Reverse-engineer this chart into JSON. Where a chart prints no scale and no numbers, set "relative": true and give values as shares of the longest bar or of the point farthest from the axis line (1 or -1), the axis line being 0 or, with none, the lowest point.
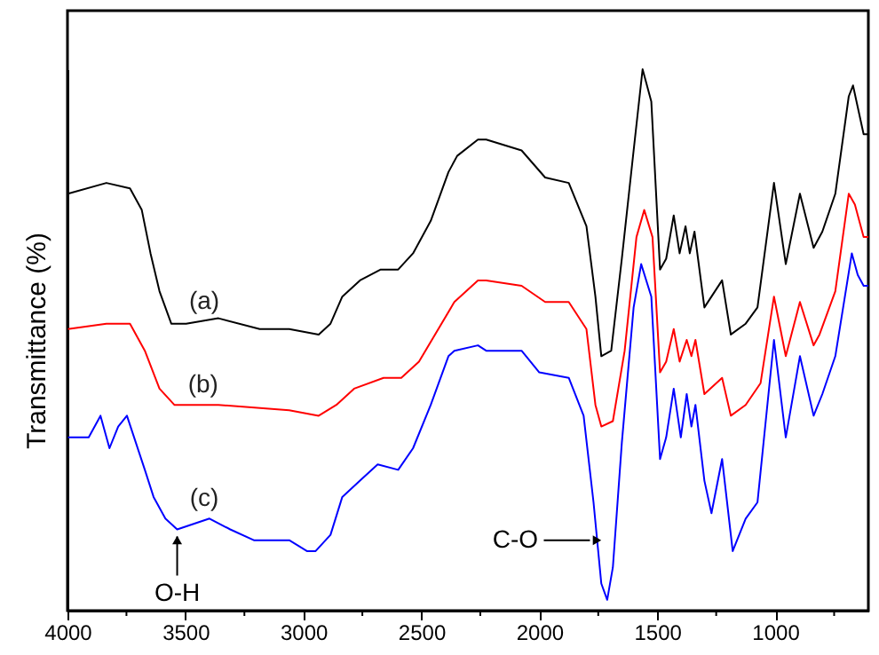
{
  "chart_data": {
    "type": "line",
    "relative": true,
    "ylabel": "Transmittance (%)",
    "xlim": [
      4000,
      605
    ],
    "xticks": [
      4000,
      {
        "value": 3750,
        "label": null
      },
      3500,
      {
        "value": 3250,
        "label": null
      },
      3000,
      {
        "value": 2750,
        "label": null
      },
      2500,
      {
        "value": 2250,
        "label": null
      },
      2000,
      {
        "value": 1750,
        "label": null
      },
      1500,
      {
        "value": 1250,
        "label": null
      },
      1000,
      {
        "value": 750,
        "label": null
      }
    ],
    "grid": false,
    "line_style": "solid",
    "marker": "none",
    "series": [
      {
        "color": "#000000",
        "x": [
          3998,
          3835,
          3735,
          3685,
          3648,
          3610,
          3560,
          3497,
          3360,
          3185,
          3060,
          2935,
          2885,
          2835,
          2760,
          2672,
          2598,
          2535,
          2460,
          2385,
          2348,
          2260,
          2225,
          2075,
          1975,
          1875,
          1800,
          1762,
          1737,
          1695,
          1650,
          1600,
          1562,
          1525,
          1488,
          1462,
          1430,
          1405,
          1380,
          1362,
          1342,
          1300,
          1225,
          1188,
          1125,
          1075,
          1005,
          955,
          895,
          837,
          800,
          745,
          688,
          670,
          625,
          605
        ],
        "values": [
          0.77,
          0.79,
          0.78,
          0.74,
          0.66,
          0.59,
          0.53,
          0.53,
          0.54,
          0.52,
          0.52,
          0.51,
          0.53,
          0.58,
          0.61,
          0.63,
          0.63,
          0.66,
          0.72,
          0.81,
          0.84,
          0.87,
          0.87,
          0.85,
          0.8,
          0.79,
          0.71,
          0.58,
          0.47,
          0.48,
          0.65,
          0.85,
          1.0,
          0.94,
          0.63,
          0.65,
          0.73,
          0.66,
          0.71,
          0.66,
          0.7,
          0.56,
          0.61,
          0.51,
          0.53,
          0.56,
          0.79,
          0.64,
          0.77,
          0.67,
          0.7,
          0.77,
          0.95,
          0.97,
          0.88,
          0.88
        ]
      },
      {
        "color": "#ff0000",
        "x": [
          3998,
          3835,
          3735,
          3672,
          3610,
          3547,
          3360,
          3060,
          2935,
          2860,
          2785,
          2660,
          2585,
          2510,
          2360,
          2260,
          2225,
          2075,
          1975,
          1875,
          1800,
          1762,
          1737,
          1688,
          1638,
          1588,
          1555,
          1520,
          1488,
          1462,
          1430,
          1405,
          1375,
          1355,
          1338,
          1300,
          1225,
          1188,
          1125,
          1062,
          1005,
          955,
          895,
          837,
          812,
          745,
          688,
          662,
          625,
          605
        ],
        "values": [
          0.52,
          0.53,
          0.53,
          0.48,
          0.41,
          0.38,
          0.38,
          0.37,
          0.36,
          0.38,
          0.41,
          0.43,
          0.43,
          0.46,
          0.57,
          0.61,
          0.61,
          0.6,
          0.57,
          0.57,
          0.52,
          0.38,
          0.34,
          0.35,
          0.48,
          0.69,
          0.74,
          0.69,
          0.44,
          0.46,
          0.52,
          0.46,
          0.5,
          0.47,
          0.5,
          0.4,
          0.43,
          0.36,
          0.38,
          0.42,
          0.58,
          0.47,
          0.57,
          0.49,
          0.51,
          0.59,
          0.77,
          0.75,
          0.69,
          0.69
        ]
      },
      {
        "color": "#0000ff",
        "x": [
          3998,
          3910,
          3860,
          3822,
          3785,
          3748,
          3710,
          3672,
          3635,
          3585,
          3535,
          3398,
          3310,
          3210,
          3060,
          2985,
          2948,
          2885,
          2835,
          2760,
          2685,
          2598,
          2535,
          2460,
          2385,
          2360,
          2260,
          2225,
          2075,
          2000,
          1875,
          1812,
          1770,
          1737,
          1712,
          1688,
          1650,
          1600,
          1568,
          1525,
          1488,
          1462,
          1430,
          1400,
          1375,
          1355,
          1338,
          1300,
          1270,
          1225,
          1180,
          1125,
          1075,
          1005,
          955,
          895,
          837,
          800,
          745,
          675,
          650,
          625,
          605
        ],
        "values": [
          0.32,
          0.32,
          0.36,
          0.3,
          0.34,
          0.36,
          0.31,
          0.26,
          0.21,
          0.17,
          0.15,
          0.17,
          0.15,
          0.13,
          0.13,
          0.11,
          0.11,
          0.14,
          0.21,
          0.24,
          0.27,
          0.26,
          0.3,
          0.38,
          0.47,
          0.48,
          0.49,
          0.48,
          0.48,
          0.44,
          0.43,
          0.36,
          0.2,
          0.05,
          0.02,
          0.08,
          0.31,
          0.56,
          0.64,
          0.58,
          0.28,
          0.32,
          0.41,
          0.32,
          0.4,
          0.34,
          0.38,
          0.24,
          0.18,
          0.28,
          0.11,
          0.17,
          0.2,
          0.5,
          0.32,
          0.47,
          0.36,
          0.4,
          0.47,
          0.66,
          0.62,
          0.6,
          0.6
        ]
      }
    ],
    "annotations": [
      {
        "text": "(a)",
        "x": 3420,
        "y": 0.535
      },
      {
        "text": "(b)",
        "x": 3425,
        "y": 0.38
      },
      {
        "text": "(c)",
        "x": 3420,
        "y": 0.17
      },
      {
        "text": "O-H",
        "x": 3535,
        "y": 0.15
      },
      {
        "text": "C-O",
        "x": 1755,
        "y": 0.13
      }
    ]
  }
}
